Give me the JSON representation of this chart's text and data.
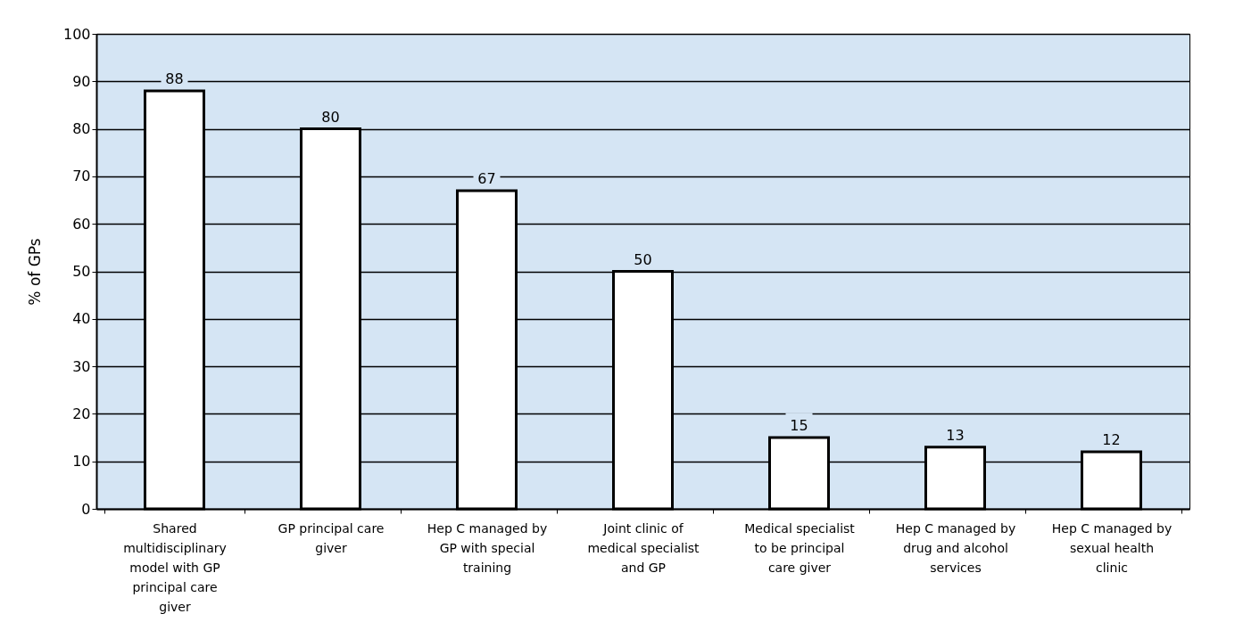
{
  "chart_data": {
    "type": "bar",
    "ylabel": "% of GPs",
    "categories": [
      "Shared multidisciplinary model with GP principal care giver",
      "GP principal care giver",
      "Hep C managed by GP with special training",
      "Joint clinic of medical specialist and GP",
      "Medical specialist to be principal care giver",
      "Hep C managed by drug and alcohol services",
      "Hep C managed by sexual health clinic"
    ],
    "values": [
      88,
      80,
      67,
      50,
      15,
      13,
      12
    ],
    "color": "#ffffff",
    "ylim": [
      0,
      100
    ],
    "yticks": [
      0,
      10,
      20,
      30,
      40,
      50,
      60,
      70,
      80,
      90,
      100
    ],
    "grid": "y",
    "data_labels": true
  }
}
